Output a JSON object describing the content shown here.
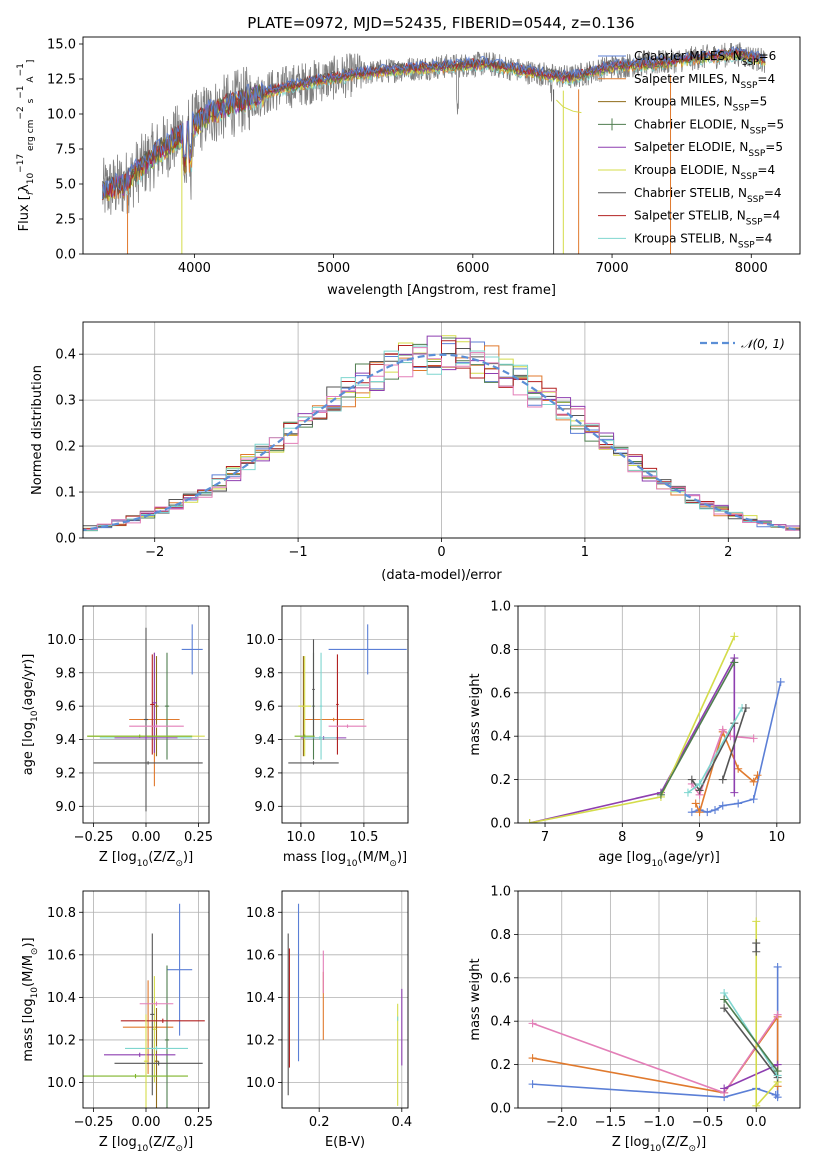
{
  "title": "PLATE=0972, MJD=52435, FIBERID=0544, z=0.136",
  "colors": {
    "Chabrier MILES": "#5b7fd6",
    "Salpeter MILES": "#e07a2e",
    "Kroupa MILES": "#8f6b1a",
    "Chabrier ELODIE": "#4f7d4f",
    "Salpeter ELODIE": "#8e3fb0",
    "Kroupa ELODIE": "#d4dc4a",
    "Chabrier STELIB": "#555555",
    "Salpeter STELIB": "#b22222",
    "Kroupa STELIB": "#7fd6cf",
    "extra_pink": "#e37fb8",
    "extra_green": "#7fb52a",
    "normal": "#5b8fd6"
  },
  "chart_data": [
    {
      "type": "line",
      "name": "spectrum",
      "title": "PLATE=0972, MJD=52435, FIBERID=0544, z=0.136",
      "xlabel": "wavelength [Angstrom, rest frame]",
      "ylabel_parts": [
        "Flux [",
        "f",
        "λ",
        "10",
        "−17",
        " erg cm",
        "−2",
        " s",
        "−1",
        " A",
        "−1",
        "]"
      ],
      "xlim": [
        3200,
        8350
      ],
      "ylim": [
        0,
        15.5
      ],
      "xticks": [
        4000,
        5000,
        6000,
        7000,
        8000
      ],
      "yticks": [
        0.0,
        2.5,
        5.0,
        7.5,
        10.0,
        12.5,
        15.0
      ],
      "legend_position": "top-right",
      "legend": [
        {
          "name": "Chabrier MILES",
          "nssp": "6"
        },
        {
          "name": "Salpeter MILES",
          "nssp": "4"
        },
        {
          "name": "Kroupa MILES",
          "nssp": "5"
        },
        {
          "name": "Chabrier ELODIE",
          "nssp": "5"
        },
        {
          "name": "Salpeter ELODIE",
          "nssp": "5"
        },
        {
          "name": "Kroupa ELODIE",
          "nssp": "4"
        },
        {
          "name": "Chabrier STELIB",
          "nssp": "4"
        },
        {
          "name": "Salpeter STELIB",
          "nssp": "4"
        },
        {
          "name": "Kroupa STELIB",
          "nssp": "4"
        }
      ],
      "continuum": {
        "x": [
          3350,
          3500,
          3700,
          3900,
          4100,
          4300,
          4600,
          4900,
          5200,
          5500,
          5800,
          6100,
          6400,
          6700,
          7000,
          7300,
          7600,
          7900,
          8100
        ],
        "y": [
          4.5,
          5.0,
          7.0,
          8.5,
          10.0,
          10.8,
          11.8,
          12.4,
          12.9,
          13.2,
          13.4,
          13.6,
          13.0,
          12.6,
          13.4,
          13.6,
          14.0,
          14.3,
          13.8
        ]
      }
    },
    {
      "type": "histogram",
      "name": "residuals",
      "xlabel": "(data-model)/error",
      "ylabel": "Normed distribution",
      "xlim": [
        -2.5,
        2.5
      ],
      "ylim": [
        0,
        0.47
      ],
      "xticks": [
        -2,
        -1,
        0,
        1,
        2
      ],
      "yticks": [
        0.0,
        0.1,
        0.2,
        0.3,
        0.4
      ],
      "legend": [
        "𝒩(0, 1)"
      ],
      "legend_position": "top-right",
      "bin_width": 0.1
    },
    {
      "type": "scatter",
      "name": "age-vs-Z",
      "xlabel_parts": [
        "Z [log",
        "10",
        "(Z/Z",
        "⊙",
        ")]"
      ],
      "ylabel_parts": [
        "age  [log",
        "10",
        "(age/yr)]"
      ],
      "xlim": [
        -0.3,
        0.3
      ],
      "ylim": [
        8.9,
        10.2
      ],
      "xticks": [
        -0.25,
        0.0,
        0.25
      ],
      "xticklabels": [
        "−0.25",
        "0.00",
        "0.25"
      ],
      "yticks": [
        9.0,
        9.2,
        9.4,
        9.6,
        9.8,
        10.0
      ],
      "points": [
        {
          "color": "Chabrier MILES",
          "x": 0.22,
          "xerr": 0.05,
          "y": 9.94,
          "yerr": 0.15
        },
        {
          "color": "Salpeter MILES",
          "x": 0.04,
          "xerr": 0.12,
          "y": 9.52,
          "yerr": 0.4
        },
        {
          "color": "Kroupa MILES",
          "x": 0.05,
          "xerr": 0.01,
          "y": 9.6,
          "yerr": 0.3
        },
        {
          "color": "Chabrier ELODIE",
          "x": 0.1,
          "xerr": 0.01,
          "y": 9.6,
          "yerr": 0.32
        },
        {
          "color": "Salpeter ELODIE",
          "x": 0.04,
          "xerr": 0.01,
          "y": 9.62,
          "yerr": 0.3
        },
        {
          "color": "Kroupa ELODIE",
          "x": 0.0,
          "xerr": 0.28,
          "y": 9.42,
          "yerr": 0.01
        },
        {
          "color": "Chabrier STELIB",
          "x": 0.0,
          "xerr": 0.01,
          "y": 9.52,
          "yerr": 0.55
        },
        {
          "color": "Salpeter STELIB",
          "x": 0.03,
          "xerr": 0.01,
          "y": 9.61,
          "yerr": 0.3
        },
        {
          "color": "Kroupa STELIB",
          "x": 0.0,
          "xerr": 0.22,
          "y": 9.41,
          "yerr": 0.01
        },
        {
          "color": "extra_pink",
          "x": 0.05,
          "xerr": 0.13,
          "y": 9.48,
          "yerr": 0.01
        },
        {
          "color": "extra_green",
          "x": -0.03,
          "xerr": 0.25,
          "y": 9.42,
          "yerr": 0.01
        },
        {
          "color": "Chabrier STELIB",
          "x": 0.01,
          "xerr": 0.26,
          "y": 9.26,
          "yerr": 0.01
        },
        {
          "color": "Salpeter ELODIE",
          "x": 0.0,
          "xerr": 0.15,
          "y": 9.41,
          "yerr": 0.01
        }
      ]
    },
    {
      "type": "scatter",
      "name": "age-vs-mass",
      "xlabel_parts": [
        "mass [log",
        "10",
        "(M/M",
        "⊙",
        ")]"
      ],
      "ylabel": "",
      "xlim": [
        9.85,
        10.85
      ],
      "ylim": [
        8.9,
        10.2
      ],
      "xticks": [
        10.0,
        10.5
      ],
      "xticklabels": [
        "10.0",
        "10.5"
      ],
      "yticks": [
        9.0,
        9.2,
        9.4,
        9.6,
        9.8,
        10.0
      ],
      "points": [
        {
          "color": "Chabrier MILES",
          "x": 10.53,
          "xerr": 0.31,
          "y": 9.94,
          "yerr": 0.15
        },
        {
          "color": "Salpeter MILES",
          "x": 10.26,
          "xerr": 0.24,
          "y": 9.52,
          "yerr": 0.01
        },
        {
          "color": "Kroupa MILES",
          "x": 10.02,
          "xerr": 0.01,
          "y": 9.6,
          "yerr": 0.3
        },
        {
          "color": "Chabrier ELODIE",
          "x": 10.1,
          "xerr": 0.01,
          "y": 9.6,
          "yerr": 0.32
        },
        {
          "color": "Salpeter ELODIE",
          "x": 10.18,
          "xerr": 0.18,
          "y": 9.41,
          "yerr": 0.01
        },
        {
          "color": "Kroupa ELODIE",
          "x": 10.03,
          "xerr": 0.05,
          "y": 9.6,
          "yerr": 0.3
        },
        {
          "color": "Chabrier STELIB",
          "x": 10.1,
          "xerr": 0.01,
          "y": 9.7,
          "yerr": 0.3
        },
        {
          "color": "Salpeter STELIB",
          "x": 10.29,
          "xerr": 0.01,
          "y": 9.61,
          "yerr": 0.3
        },
        {
          "color": "Kroupa STELIB",
          "x": 10.16,
          "xerr": 0.01,
          "y": 9.6,
          "yerr": 0.32
        },
        {
          "color": "extra_pink",
          "x": 10.37,
          "xerr": 0.15,
          "y": 9.48,
          "yerr": 0.01
        },
        {
          "color": "extra_green",
          "x": 10.03,
          "xerr": 0.08,
          "y": 9.42,
          "yerr": 0.01
        },
        {
          "color": "Chabrier STELIB",
          "x": 10.1,
          "xerr": 0.2,
          "y": 9.26,
          "yerr": 0.01
        },
        {
          "color": "Kroupa STELIB",
          "x": 10.15,
          "xerr": 0.13,
          "y": 9.41,
          "yerr": 0.01
        }
      ]
    },
    {
      "type": "line",
      "name": "mass-weight-vs-age",
      "xlabel_parts": [
        "age  [log",
        "10",
        "(age/yr)]"
      ],
      "ylabel": "mass weight",
      "xlim": [
        6.65,
        10.3
      ],
      "ylim": [
        0,
        1.0
      ],
      "xticks": [
        7,
        8,
        9,
        10
      ],
      "yticks": [
        0.0,
        0.2,
        0.4,
        0.6,
        0.8,
        1.0
      ],
      "series": [
        {
          "color": "Chabrier MILES",
          "x": [
            8.9,
            9.0,
            9.1,
            9.2,
            9.3,
            9.5,
            9.7,
            10.05
          ],
          "y": [
            0.05,
            0.06,
            0.05,
            0.06,
            0.08,
            0.09,
            0.11,
            0.65
          ]
        },
        {
          "color": "Salpeter MILES",
          "x": [
            8.95,
            9.0,
            9.3,
            9.5,
            9.7,
            9.75
          ],
          "y": [
            0.09,
            0.05,
            0.42,
            0.25,
            0.19,
            0.22
          ]
        },
        {
          "color": "extra_pink",
          "x": [
            8.9,
            9.0,
            9.3,
            9.4,
            9.7
          ],
          "y": [
            0.18,
            0.13,
            0.43,
            0.4,
            0.39
          ]
        },
        {
          "color": "Salpeter ELODIE",
          "x": [
            6.8,
            8.5,
            9.45,
            9.45
          ],
          "y": [
            0.0,
            0.14,
            0.76,
            0.14
          ]
        },
        {
          "color": "Kroupa ELODIE",
          "x": [
            6.8,
            8.5,
            9.45
          ],
          "y": [
            0.0,
            0.12,
            0.86
          ]
        },
        {
          "color": "Chabrier STELIB",
          "x": [
            8.9,
            9.0,
            9.45
          ],
          "y": [
            0.2,
            0.15,
            0.46
          ]
        },
        {
          "color": "Kroupa STELIB",
          "x": [
            8.85,
            9.0,
            9.55
          ],
          "y": [
            0.14,
            0.18,
            0.53
          ]
        },
        {
          "color": "Chabrier ELODIE",
          "x": [
            8.5,
            9.45
          ],
          "y": [
            0.13,
            0.74
          ]
        },
        {
          "color": "Chabrier STELIB",
          "x": [
            9.3,
            9.6
          ],
          "y": [
            0.2,
            0.53
          ]
        }
      ]
    },
    {
      "type": "scatter",
      "name": "mass-vs-Z",
      "xlabel_parts": [
        "Z [log",
        "10",
        "(Z/Z",
        "⊙",
        ")]"
      ],
      "ylabel_parts": [
        "mass [log",
        "10",
        "(M/M",
        "⊙",
        ")]"
      ],
      "xlim": [
        -0.3,
        0.3
      ],
      "ylim": [
        9.88,
        10.9
      ],
      "xticks": [
        -0.25,
        0.0,
        0.25
      ],
      "xticklabels": [
        "−0.25",
        "0.00",
        "0.25"
      ],
      "yticks": [
        10.0,
        10.2,
        10.4,
        10.6,
        10.8
      ],
      "points": [
        {
          "color": "Chabrier MILES",
          "x": 0.16,
          "xerr": 0.06,
          "y": 10.53,
          "yerr": 0.31
        },
        {
          "color": "Salpeter MILES",
          "x": 0.01,
          "xerr": 0.12,
          "y": 10.26,
          "yerr": 0.22
        },
        {
          "color": "Kroupa MILES",
          "x": 0.05,
          "xerr": 0.01,
          "y": 10.1,
          "yerr": 0.25
        },
        {
          "color": "Chabrier ELODIE",
          "x": 0.1,
          "xerr": 0.01,
          "y": 10.2,
          "yerr": 0.35
        },
        {
          "color": "Salpeter ELODIE",
          "x": -0.03,
          "xerr": 0.17,
          "y": 10.13,
          "yerr": 0.01
        },
        {
          "color": "Kroupa ELODIE",
          "x": 0.04,
          "xerr": 0.01,
          "y": 10.25,
          "yerr": 0.25
        },
        {
          "color": "Chabrier STELIB",
          "x": 0.03,
          "xerr": 0.01,
          "y": 10.32,
          "yerr": 0.38
        },
        {
          "color": "Salpeter STELIB",
          "x": 0.08,
          "xerr": 0.2,
          "y": 10.29,
          "yerr": 0.01
        },
        {
          "color": "Kroupa STELIB",
          "x": 0.05,
          "xerr": 0.15,
          "y": 10.16,
          "yerr": 0.01
        },
        {
          "color": "extra_pink",
          "x": 0.05,
          "xerr": 0.08,
          "y": 10.37,
          "yerr": 0.01
        },
        {
          "color": "extra_green",
          "x": -0.05,
          "xerr": 0.25,
          "y": 10.03,
          "yerr": 0.01
        },
        {
          "color": "Chabrier STELIB",
          "x": 0.06,
          "xerr": 0.21,
          "y": 10.09,
          "yerr": 0.01
        },
        {
          "color": "Kroupa ELODIE",
          "x": 0.0,
          "xerr": 0.01,
          "y": 10.1,
          "yerr": 0.22
        }
      ]
    },
    {
      "type": "scatter",
      "name": "mass-vs-ebv",
      "xlabel": "E(B-V)",
      "ylabel": "",
      "xlim": [
        0.11,
        0.415
      ],
      "ylim": [
        9.88,
        10.9
      ],
      "xticks": [
        0.2,
        0.4
      ],
      "xticklabels": [
        "0.2",
        "0.4"
      ],
      "yticks": [
        10.0,
        10.2,
        10.4,
        10.6,
        10.8
      ],
      "points": [
        {
          "color": "Chabrier MILES",
          "x": 0.15,
          "y": 10.47,
          "yerr": 0.37
        },
        {
          "color": "Chabrier STELIB",
          "x": 0.125,
          "y": 10.32,
          "yerr": 0.38
        },
        {
          "color": "Salpeter STELIB",
          "x": 0.128,
          "y": 10.35,
          "yerr": 0.28
        },
        {
          "color": "Salpeter MILES",
          "x": 0.21,
          "y": 10.36,
          "yerr": 0.16
        },
        {
          "color": "extra_pink",
          "x": 0.21,
          "y": 10.52,
          "yerr": 0.1
        },
        {
          "color": "Kroupa ELODIE",
          "x": 0.39,
          "y": 10.13,
          "yerr": 0.24
        },
        {
          "color": "Salpeter ELODIE",
          "x": 0.4,
          "y": 10.26,
          "yerr": 0.18
        },
        {
          "color": "Kroupa STELIB",
          "x": 0.39,
          "y": 10.3,
          "yerr": 0.01
        }
      ]
    },
    {
      "type": "line",
      "name": "mass-weight-vs-Z",
      "xlabel_parts": [
        "Z [log",
        "10",
        "(Z/Z",
        "⊙",
        ")]"
      ],
      "ylabel": "mass weight",
      "xlim": [
        -2.45,
        0.45
      ],
      "ylim": [
        0,
        1.0
      ],
      "xticks": [
        -2.0,
        -1.5,
        -1.0,
        -0.5,
        0.0
      ],
      "xticklabels": [
        "−2.0",
        "−1.5",
        "−1.0",
        "−0.5",
        "0.0"
      ],
      "yticks": [
        0.0,
        0.2,
        0.4,
        0.6,
        0.8,
        1.0
      ],
      "series": [
        {
          "color": "Chabrier MILES",
          "x": [
            -2.3,
            -0.33,
            0.0,
            0.2,
            0.22,
            0.22
          ],
          "y": [
            0.11,
            0.05,
            0.09,
            0.06,
            0.05,
            0.65
          ]
        },
        {
          "color": "Salpeter MILES",
          "x": [
            -2.3,
            -0.33,
            0.22,
            0.22
          ],
          "y": [
            0.23,
            0.07,
            0.42,
            0.1
          ]
        },
        {
          "color": "extra_pink",
          "x": [
            -2.3,
            -0.33,
            0.22
          ],
          "y": [
            0.39,
            0.07,
            0.43
          ]
        },
        {
          "color": "Salpeter ELODIE",
          "x": [
            -0.33,
            0.22
          ],
          "y": [
            0.09,
            0.2
          ]
        },
        {
          "color": "Kroupa ELODIE",
          "x": [
            0.0,
            0.0,
            0.22
          ],
          "y": [
            0.86,
            0.01,
            0.12
          ]
        },
        {
          "color": "Chabrier STELIB",
          "x": [
            -0.33,
            0.22
          ],
          "y": [
            0.46,
            0.14
          ]
        },
        {
          "color": "Kroupa STELIB",
          "x": [
            -0.33,
            0.22
          ],
          "y": [
            0.53,
            0.15
          ]
        },
        {
          "color": "Chabrier ELODIE",
          "x": [
            -0.33,
            0.22
          ],
          "y": [
            0.5,
            0.17
          ]
        },
        {
          "color": "Chabrier STELIB",
          "x": [
            0.0,
            0.0
          ],
          "y": [
            0.76,
            0.72
          ]
        }
      ]
    }
  ]
}
